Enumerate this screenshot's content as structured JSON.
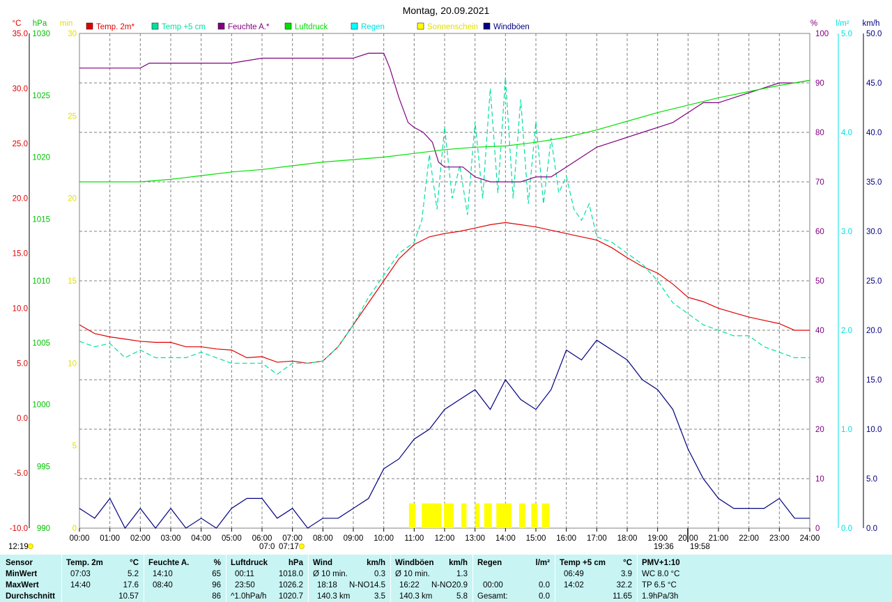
{
  "chart_data": {
    "type": "line",
    "title": "Montag, 20.09.2021",
    "x_ticks": [
      "00:00",
      "01:00",
      "02:00",
      "03:00",
      "04:00",
      "05:00",
      "06:00",
      "07:00",
      "08:00",
      "09:00",
      "10:00",
      "11:00",
      "12:00",
      "13:00",
      "14:00",
      "15:00",
      "16:00",
      "17:00",
      "18:00",
      "19:00",
      "20:00",
      "21:00",
      "22:00",
      "23:00",
      "24:00"
    ],
    "axes": {
      "temp": {
        "unit": "°C",
        "range": [
          -10,
          35
        ],
        "ticks": [
          "35.0",
          "30.0",
          "25.0",
          "20.0",
          "15.0",
          "10.0",
          "5.0",
          "0.0",
          "-5.0",
          "-10.0"
        ],
        "color": "#e00000"
      },
      "pressure": {
        "unit": "hPa",
        "range": [
          990,
          1030
        ],
        "ticks": [
          "1030",
          "1025",
          "1020",
          "1015",
          "1010",
          "1005",
          "1000",
          "995",
          "990"
        ],
        "color": "#00c000"
      },
      "sun": {
        "unit": "min",
        "range": [
          0,
          30
        ],
        "ticks": [
          "30",
          "25",
          "20",
          "15",
          "10",
          "5",
          "0"
        ],
        "color": "#e0e000"
      },
      "humidity": {
        "unit": "%",
        "range": [
          0,
          100
        ],
        "ticks": [
          "100",
          "90",
          "80",
          "70",
          "60",
          "50",
          "40",
          "30",
          "20",
          "10",
          "0"
        ],
        "color": "#800080"
      },
      "rain": {
        "unit": "l/m²",
        "range": [
          0,
          5
        ],
        "ticks": [
          "5.0",
          "4.0",
          "3.0",
          "2.0",
          "1.0",
          "0.0"
        ],
        "color": "#00e0e0"
      },
      "wind": {
        "unit": "km/h",
        "range": [
          0,
          50
        ],
        "ticks": [
          "50.0",
          "45.0",
          "40.0",
          "35.0",
          "30.0",
          "25.0",
          "20.0",
          "15.0",
          "10.0",
          "5.0",
          "0.0"
        ],
        "color": "#000080"
      }
    },
    "legend": [
      {
        "name": "Temp. 2m*",
        "color": "#e00000"
      },
      {
        "name": "Temp +5 cm",
        "color": "#00e0a0"
      },
      {
        "name": "Feuchte A.*",
        "color": "#800080"
      },
      {
        "name": "Luftdruck",
        "color": "#00e000"
      },
      {
        "name": "Regen",
        "color": "#00ffff"
      },
      {
        "name": "Sonnenschein",
        "color": "#ffff00"
      },
      {
        "name": "Windböen",
        "color": "#000080"
      }
    ],
    "series": [
      {
        "name": "Temp. 2m*",
        "axis": "temp",
        "x": [
          0,
          0.5,
          1,
          1.5,
          2,
          2.5,
          3,
          3.5,
          4,
          4.5,
          5,
          5.5,
          6,
          6.5,
          7,
          7.5,
          8,
          8.5,
          9,
          9.5,
          10,
          10.5,
          11,
          11.5,
          12,
          12.5,
          13,
          13.5,
          14,
          14.5,
          15,
          15.5,
          16,
          16.5,
          17,
          17.5,
          18,
          18.5,
          19,
          19.5,
          20,
          20.5,
          21,
          21.5,
          22,
          22.5,
          23,
          23.5,
          24
        ],
        "y": [
          8.5,
          7.7,
          7.4,
          7.2,
          7.0,
          6.9,
          6.9,
          6.5,
          6.5,
          6.3,
          6.2,
          5.5,
          5.6,
          5.1,
          5.2,
          5.0,
          5.2,
          6.5,
          8.5,
          10.5,
          12.5,
          14.5,
          15.8,
          16.5,
          16.8,
          17.0,
          17.3,
          17.6,
          17.8,
          17.6,
          17.4,
          17.1,
          16.8,
          16.5,
          16.2,
          15.5,
          14.6,
          13.8,
          13.2,
          12.2,
          11.0,
          10.6,
          10.0,
          9.6,
          9.2,
          8.9,
          8.6,
          8.0,
          8.0
        ]
      },
      {
        "name": "Temp +5 cm",
        "axis": "temp",
        "x": [
          0,
          0.5,
          1,
          1.5,
          2,
          2.5,
          3,
          3.5,
          4,
          4.5,
          5,
          5.5,
          6,
          6.5,
          7,
          7.5,
          8,
          8.5,
          9,
          9.5,
          10,
          10.5,
          11,
          11.25,
          11.5,
          11.75,
          12,
          12.25,
          12.5,
          12.75,
          13,
          13.25,
          13.5,
          13.75,
          14,
          14.25,
          14.5,
          14.75,
          15,
          15.25,
          15.5,
          15.75,
          16,
          16.25,
          16.5,
          16.75,
          17,
          17.5,
          18,
          18.5,
          19,
          19.5,
          20,
          20.5,
          21,
          21.5,
          22,
          22.5,
          23,
          23.5,
          24
        ],
        "y": [
          7.0,
          6.5,
          6.8,
          5.5,
          6.2,
          5.5,
          5.5,
          5.5,
          6.0,
          5.5,
          5.0,
          5.0,
          5.0,
          4.0,
          5.0,
          5.0,
          5.2,
          6.5,
          8.5,
          11.0,
          13.0,
          15.0,
          16.0,
          18.0,
          24.0,
          19.0,
          26.5,
          20.0,
          23.0,
          18.5,
          27.0,
          20.0,
          30.0,
          20.5,
          31.0,
          20.0,
          29.0,
          19.5,
          27.0,
          19.5,
          25.5,
          20.5,
          22.0,
          19.0,
          18.0,
          19.5,
          16.5,
          16.0,
          15.0,
          14.0,
          12.5,
          10.5,
          9.5,
          8.5,
          8.0,
          7.5,
          7.5,
          6.5,
          6.0,
          5.5,
          5.5
        ]
      },
      {
        "name": "Feuchte A.*",
        "axis": "humidity",
        "x": [
          0,
          1,
          2,
          2.3,
          3,
          4,
          5,
          6,
          7,
          8,
          9,
          9.5,
          10,
          10.2,
          10.5,
          10.8,
          11,
          11.3,
          11.6,
          11.8,
          12,
          12.3,
          12.6,
          13,
          13.5,
          14,
          14.5,
          15,
          15.5,
          16,
          16.5,
          17,
          17.5,
          18,
          18.5,
          19,
          19.5,
          20,
          20.5,
          21,
          21.5,
          22,
          22.5,
          23,
          23.5,
          24
        ],
        "y": [
          93,
          93,
          93,
          94,
          94,
          94,
          94,
          95,
          95,
          95,
          95,
          96,
          96,
          93,
          87,
          82,
          81,
          80,
          78,
          74,
          73,
          73,
          73,
          71,
          70,
          70,
          70,
          71,
          71,
          73,
          75,
          77,
          78,
          79,
          80,
          81,
          82,
          84,
          86,
          86,
          87,
          88,
          89,
          90,
          90,
          90.5
        ]
      },
      {
        "name": "Luftdruck",
        "axis": "pressure",
        "x": [
          0,
          1,
          2,
          3,
          4,
          5,
          6,
          7,
          8,
          9,
          10,
          11,
          12,
          13,
          14,
          15,
          16,
          17,
          18,
          19,
          20,
          21,
          22,
          23,
          24
        ],
        "y": [
          1018.0,
          1018.0,
          1018.0,
          1018.2,
          1018.5,
          1018.8,
          1019.0,
          1019.3,
          1019.6,
          1019.8,
          1020.0,
          1020.3,
          1020.6,
          1020.8,
          1020.9,
          1021.2,
          1021.6,
          1022.2,
          1022.9,
          1023.6,
          1024.2,
          1024.8,
          1025.3,
          1025.8,
          1026.2
        ]
      },
      {
        "name": "Windböen",
        "axis": "wind",
        "x": [
          0,
          0.5,
          1,
          1.5,
          2,
          2.5,
          3,
          3.5,
          4,
          4.5,
          5,
          5.5,
          6,
          6.5,
          7,
          7.5,
          8,
          8.5,
          9,
          9.5,
          10,
          10.5,
          11,
          11.5,
          12,
          12.5,
          13,
          13.5,
          14,
          14.5,
          15,
          15.5,
          16,
          16.5,
          17,
          17.5,
          18,
          18.5,
          19,
          19.5,
          20,
          20.5,
          21,
          21.5,
          22,
          22.5,
          23,
          23.5,
          24
        ],
        "y": [
          2,
          1,
          3,
          0,
          2,
          0,
          2,
          0,
          1,
          0,
          2,
          3,
          3,
          1,
          2,
          0,
          1,
          1,
          2,
          3,
          6,
          7,
          9,
          10,
          12,
          13,
          14,
          12,
          15,
          13,
          12,
          14,
          18,
          17,
          19,
          18,
          17,
          15,
          14,
          12,
          8,
          5,
          3,
          2,
          2,
          2,
          3,
          1,
          1
        ]
      }
    ],
    "sunshine_bars": [
      [
        10.83,
        11.05
      ],
      [
        11.25,
        11.9
      ],
      [
        11.98,
        12.3
      ],
      [
        12.55,
        12.72
      ],
      [
        13.0,
        13.15
      ],
      [
        13.3,
        13.55
      ],
      [
        13.7,
        14.2
      ],
      [
        14.45,
        14.65
      ],
      [
        14.85,
        15.05
      ],
      [
        15.2,
        15.45
      ]
    ],
    "sun_markers": {
      "dawn": "07:17",
      "sunrise_minus": "07:0",
      "sunset": "19:36",
      "dusk": "19:58"
    },
    "noon_marker": "12:19"
  },
  "summary": {
    "sections": [
      {
        "head": "Sensor",
        "unit": ""
      },
      {
        "head": "Temp. 2m",
        "unit": "°C"
      },
      {
        "head": "Feuchte A.",
        "unit": "%"
      },
      {
        "head": "Luftdruck",
        "unit": "hPa"
      },
      {
        "head": "Wind",
        "unit": "km/h"
      },
      {
        "head": "Windböen",
        "unit": "km/h"
      },
      {
        "head": "Regen",
        "unit": "l/m²"
      },
      {
        "head": "Temp +5 cm",
        "unit": "°C"
      },
      {
        "head": "PMV+1:10",
        "unit": ""
      }
    ],
    "row_labels": [
      "MinWert",
      "MaxWert",
      "Durchschnitt"
    ],
    "temp2m": {
      "min_time": "07:03",
      "min": "5.2",
      "max_time": "14:40",
      "max": "17.6",
      "avg": "10.57"
    },
    "feuchte": {
      "min_time": "14:10",
      "min": "65",
      "max_time": "08:40",
      "max": "96",
      "avg": "86"
    },
    "luftdruck": {
      "min_time": "00:11",
      "min": "1018.0",
      "max_time": "23:50",
      "max": "1026.2",
      "avg_label": "^1.0hPa/h",
      "avg": "1020.7"
    },
    "wind": {
      "min_label": "Ø 10 min.",
      "min": "0.3",
      "max_time": "18:18",
      "max_dir": "N-NO",
      "max": "14.5",
      "avg_label": "140.3 km",
      "avg": "3.5"
    },
    "windboen": {
      "min_label": "Ø 10 min.",
      "min": "1.3",
      "max_time": "16:22",
      "max_dir": "N-NO",
      "max": "20.9",
      "avg_label": "140.3 km",
      "avg": "5.8"
    },
    "regen": {
      "max_time": "00:00",
      "max": "0.0",
      "avg_label": "Gesamt:",
      "avg": "0.0"
    },
    "temp5cm": {
      "min_time": "06:49",
      "min": "3.9",
      "max_time": "14:02",
      "max": "32.2",
      "avg": "11.65"
    },
    "pmv": {
      "row1": "WC 8.0 °C",
      "row2": "TP 6.5 °C",
      "row3": "1.9hPa/3h"
    }
  }
}
